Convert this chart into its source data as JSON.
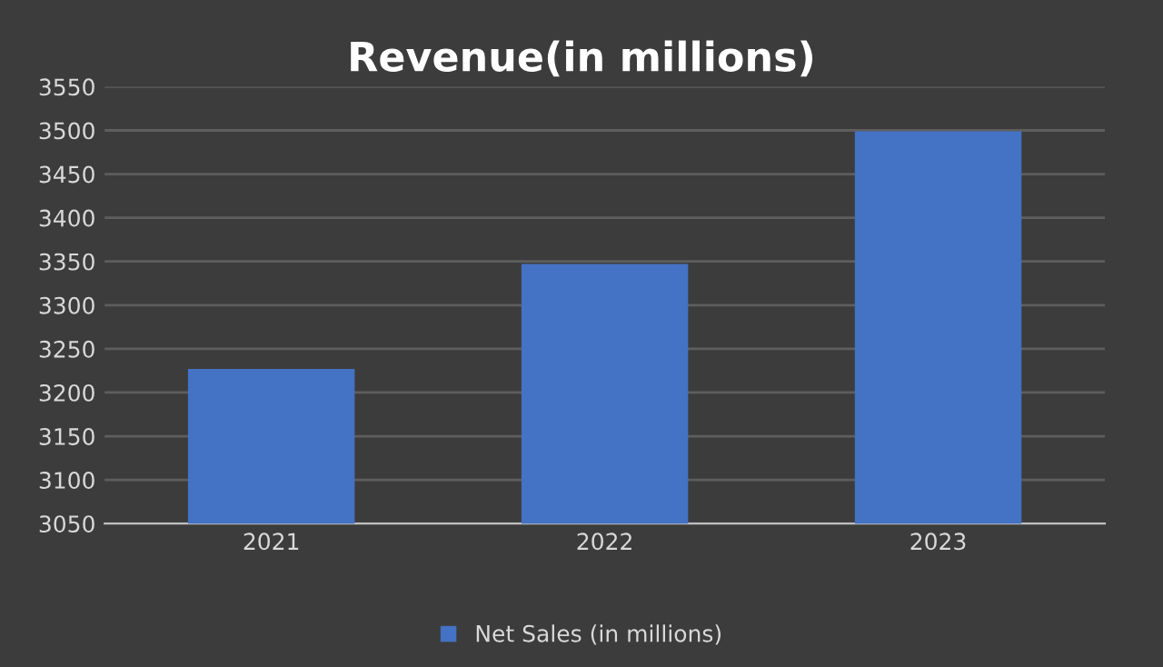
{
  "chart_data": {
    "type": "bar",
    "title": "Revenue(in millions)",
    "categories": [
      "2021",
      "2022",
      "2023"
    ],
    "series": [
      {
        "name": "Net Sales (in millions)",
        "color": "#4472c4",
        "values": [
          3227,
          3347,
          3499
        ]
      }
    ],
    "ylim": [
      3050,
      3550
    ],
    "yticks": [
      3050,
      3100,
      3150,
      3200,
      3250,
      3300,
      3350,
      3400,
      3450,
      3500,
      3550
    ],
    "grid": "y",
    "legend": "bottom"
  }
}
